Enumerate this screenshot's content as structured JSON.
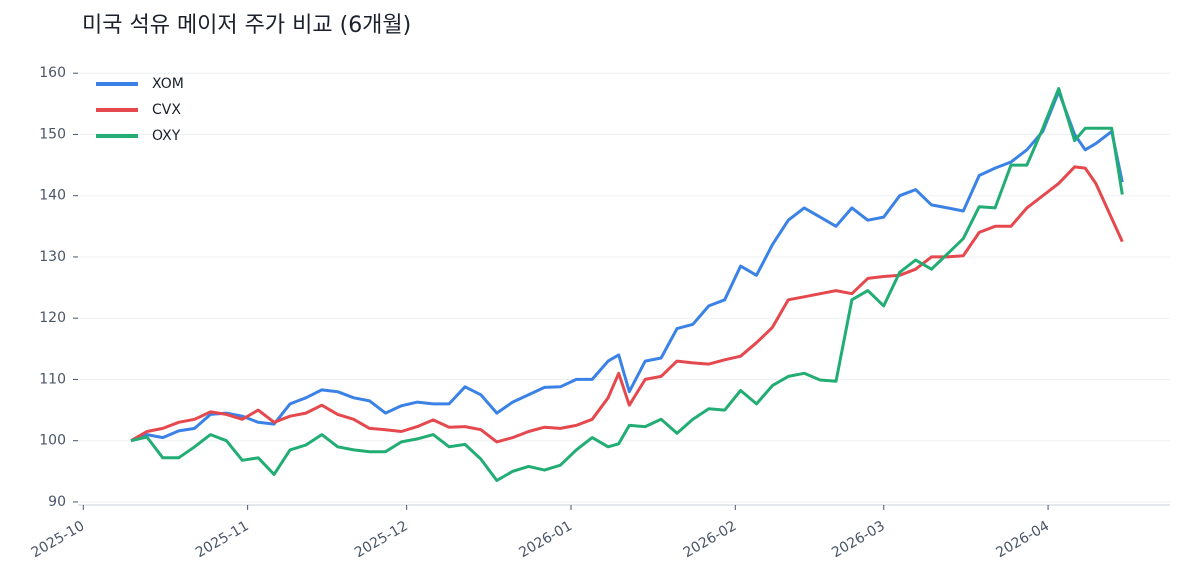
{
  "chart_data": {
    "type": "line",
    "title": "미국 석유 메이저 주가 비교 (6개월)",
    "x": [
      9,
      12,
      15,
      18,
      21,
      24,
      27,
      30,
      33,
      36,
      39,
      42,
      45,
      48,
      51,
      54,
      57,
      60,
      63,
      66,
      69,
      72,
      75,
      78,
      81,
      84,
      87,
      90,
      93,
      96,
      99,
      101,
      103,
      106,
      109,
      112,
      115,
      118,
      121,
      124,
      127,
      130,
      133,
      136,
      139,
      142,
      145,
      148,
      151,
      154,
      157,
      160,
      163,
      166,
      169,
      172,
      175,
      178,
      181,
      184,
      187,
      189,
      191,
      194,
      196
    ],
    "series": [
      {
        "name": "XOM",
        "color": "#3b82e6",
        "values": [
          100,
          101,
          100.5,
          101.6,
          102,
          104.3,
          104.5,
          104,
          103,
          102.7,
          106,
          107,
          108.3,
          108,
          107,
          106.5,
          104.5,
          105.7,
          106.3,
          106,
          106,
          108.8,
          107.5,
          104.5,
          106.3,
          107.5,
          108.7,
          108.8,
          110,
          110,
          113,
          114,
          108,
          113,
          113.5,
          118.3,
          119,
          122,
          123,
          128.5,
          127,
          132,
          136,
          138,
          136.5,
          135,
          138,
          136,
          136.5,
          140,
          141,
          138.5,
          138,
          137.5,
          143.3,
          144.5,
          145.5,
          147.5,
          150.5,
          157,
          150,
          147.5,
          148.5,
          150.5,
          142.2
        ]
      },
      {
        "name": "CVX",
        "color": "#e5484d",
        "values": [
          100,
          101.5,
          102,
          103,
          103.5,
          104.7,
          104.3,
          103.5,
          105,
          103,
          104,
          104.5,
          105.8,
          104.3,
          103.5,
          102,
          101.8,
          101.5,
          102.3,
          103.4,
          102.2,
          102.3,
          101.8,
          99.8,
          100.5,
          101.5,
          102.2,
          102,
          102.5,
          103.5,
          107,
          111,
          105.8,
          110,
          110.5,
          113,
          112.7,
          112.5,
          113.2,
          113.8,
          116,
          118.5,
          123,
          123.5,
          124,
          124.5,
          124,
          126.5,
          126.8,
          127,
          128,
          130,
          130,
          130.2,
          134,
          135,
          135,
          138,
          140,
          142,
          144.7,
          144.5,
          142,
          136.3,
          132.5
        ]
      },
      {
        "name": "OXY",
        "color": "#22ad74",
        "values": [
          100,
          100.6,
          97.2,
          97.2,
          99,
          101,
          100,
          96.8,
          97.2,
          94.5,
          98.5,
          99.3,
          101,
          99,
          98.5,
          98.2,
          98.2,
          99.8,
          100.3,
          101,
          99,
          99.4,
          97,
          93.5,
          95,
          95.8,
          95.2,
          96,
          98.5,
          100.5,
          99,
          99.5,
          102.5,
          102.3,
          103.5,
          101.2,
          103.5,
          105.2,
          105,
          108.2,
          106,
          109,
          110.5,
          111,
          109.9,
          109.7,
          123,
          124.5,
          122,
          127.5,
          129.5,
          128,
          130.5,
          133,
          138.2,
          138,
          145,
          145,
          151,
          157.5,
          149,
          151,
          151,
          151,
          140.2
        ]
      }
    ],
    "xlim": [
      -1,
      205
    ],
    "xticks": [
      {
        "value": 0,
        "label": "2025-10"
      },
      {
        "value": 31,
        "label": "2025-11"
      },
      {
        "value": 61,
        "label": "2025-12"
      },
      {
        "value": 92,
        "label": "2026-01"
      },
      {
        "value": 123,
        "label": "2026-02"
      },
      {
        "value": 151,
        "label": "2026-03"
      },
      {
        "value": 182,
        "label": "2026-04"
      }
    ],
    "ylim": [
      89.5,
      161.5
    ],
    "yticks": [
      90,
      100,
      110,
      120,
      130,
      140,
      150,
      160
    ],
    "grid": true,
    "legend": "upper-left"
  }
}
